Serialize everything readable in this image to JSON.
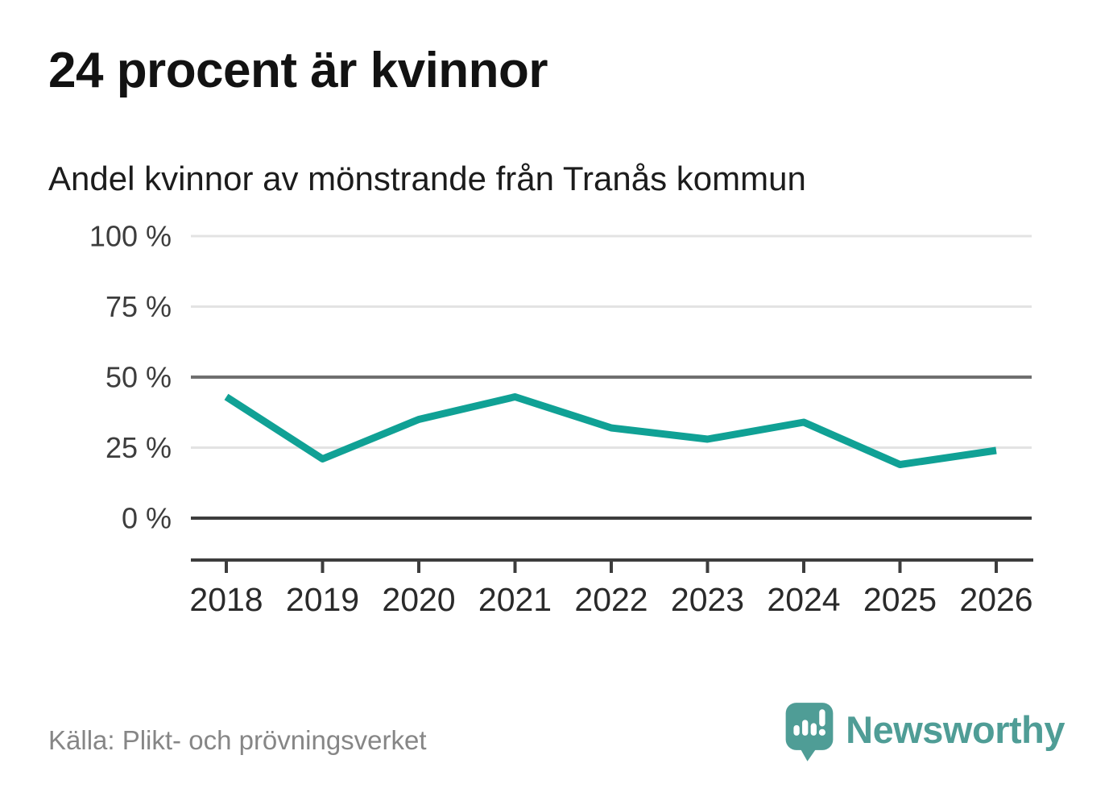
{
  "chart_data": {
    "type": "line",
    "title": "24 procent är kvinnor",
    "subtitle": "Andel kvinnor av mönstrande från Tranås kommun",
    "categories": [
      "2018",
      "2019",
      "2020",
      "2021",
      "2022",
      "2023",
      "2024",
      "2025",
      "2026"
    ],
    "values": [
      43,
      21,
      35,
      43,
      32,
      28,
      34,
      19,
      24
    ],
    "unit": "%",
    "xlabel": "",
    "ylabel": "",
    "ylim": [
      0,
      100
    ],
    "yticks": [
      0,
      25,
      50,
      75,
      100
    ],
    "ytick_labels": [
      "0 %",
      "25 %",
      "50 %",
      "75 %",
      "100 %"
    ],
    "grid": true,
    "legend": false,
    "line_color": "#10a195",
    "emphasized_gridlines": [
      0,
      50
    ]
  },
  "footer": {
    "source": "Källa: Plikt- och prövningsverket",
    "brand": "Newsworthy",
    "brand_color": "#4f9d96"
  }
}
